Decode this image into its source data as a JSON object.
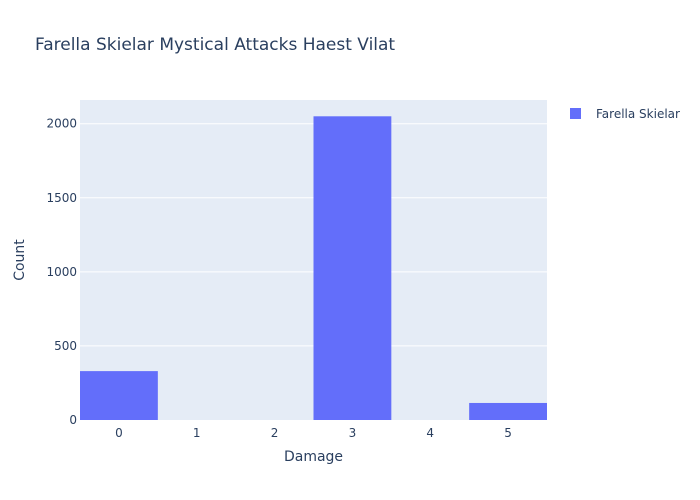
{
  "chart_data": {
    "type": "bar",
    "title": "Farella Skielar Mystical Attacks Haest Vilat",
    "xlabel": "Damage",
    "ylabel": "Count",
    "categories": [
      "0",
      "1",
      "2",
      "3",
      "4",
      "5"
    ],
    "series": [
      {
        "name": "Farella Skielar",
        "values": [
          330,
          0,
          0,
          2050,
          0,
          115
        ],
        "color": "#636efa"
      }
    ],
    "ylim": [
      0,
      2160
    ],
    "yticks": [
      0,
      500,
      1000,
      1500,
      2000
    ],
    "ytick_labels": [
      "0",
      "500",
      "1000",
      "1500",
      "2000"
    ],
    "grid": true,
    "legend_position": "top-right",
    "plot_background": "#e5ecf6",
    "paper_background": "#ffffff"
  }
}
